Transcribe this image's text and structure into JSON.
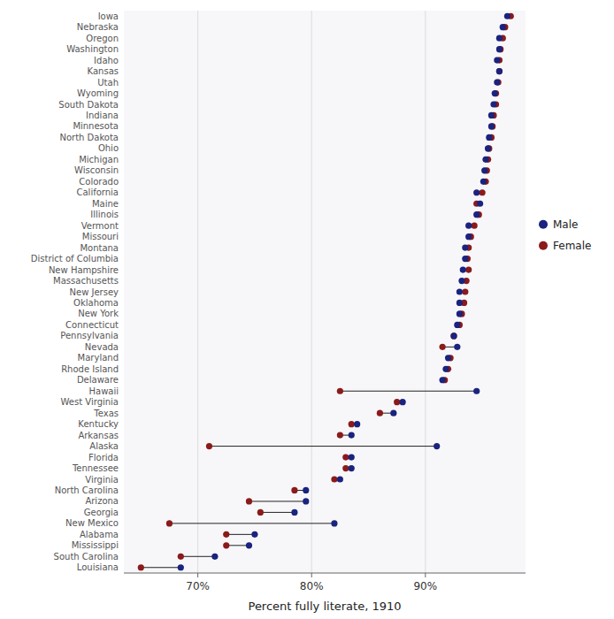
{
  "chart_data": {
    "type": "dumbbell",
    "orientation": "horizontal",
    "xlabel": "Percent fully literate, 1910",
    "categories": [
      "Iowa",
      "Nebraska",
      "Oregon",
      "Washington",
      "Idaho",
      "Kansas",
      "Utah",
      "Wyoming",
      "South Dakota",
      "Indiana",
      "Minnesota",
      "North Dakota",
      "Ohio",
      "Michigan",
      "Wisconsin",
      "Colorado",
      "California",
      "Maine",
      "Illinois",
      "Vermont",
      "Missouri",
      "Montana",
      "District of Columbia",
      "New Hampshire",
      "Massachusetts",
      "New Jersey",
      "Oklahoma",
      "New York",
      "Connecticut",
      "Pennsylvania",
      "Nevada",
      "Maryland",
      "Rhode Island",
      "Delaware",
      "Hawaii",
      "West Virginia",
      "Texas",
      "Kentucky",
      "Arkansas",
      "Alaska",
      "Florida",
      "Tennessee",
      "Virginia",
      "North Carolina",
      "Arizona",
      "Georgia",
      "New Mexico",
      "Alabama",
      "Mississippi",
      "South Carolina",
      "Louisiana"
    ],
    "series": [
      {
        "name": "Male",
        "color": "#1a237e",
        "values": [
          0.972,
          0.968,
          0.965,
          0.965,
          0.963,
          0.965,
          0.963,
          0.961,
          0.96,
          0.958,
          0.958,
          0.956,
          0.955,
          0.953,
          0.952,
          0.951,
          0.945,
          0.948,
          0.945,
          0.938,
          0.938,
          0.935,
          0.935,
          0.933,
          0.932,
          0.93,
          0.93,
          0.93,
          0.928,
          0.925,
          0.928,
          0.92,
          0.918,
          0.915,
          0.945,
          0.88,
          0.872,
          0.84,
          0.835,
          0.91,
          0.835,
          0.835,
          0.825,
          0.795,
          0.795,
          0.785,
          0.82,
          0.75,
          0.745,
          0.715,
          0.685
        ]
      },
      {
        "name": "Female",
        "color": "#8b1a1a",
        "values": [
          0.975,
          0.97,
          0.968,
          0.966,
          0.965,
          0.965,
          0.964,
          0.962,
          0.962,
          0.96,
          0.959,
          0.958,
          0.956,
          0.955,
          0.954,
          0.953,
          0.95,
          0.945,
          0.947,
          0.943,
          0.94,
          0.938,
          0.937,
          0.938,
          0.936,
          0.935,
          0.934,
          0.932,
          0.93,
          0.925,
          0.915,
          0.922,
          0.92,
          0.917,
          0.825,
          0.875,
          0.86,
          0.835,
          0.825,
          0.71,
          0.83,
          0.83,
          0.82,
          0.785,
          0.745,
          0.755,
          0.675,
          0.725,
          0.725,
          0.685,
          0.65
        ]
      }
    ],
    "xlim": [
      0.635,
      0.988
    ],
    "xticks": [
      {
        "value": 0.7,
        "label": "70%"
      },
      {
        "value": 0.8,
        "label": "80%"
      },
      {
        "value": 0.9,
        "label": "90%"
      }
    ],
    "grid": true,
    "legend": "right"
  }
}
